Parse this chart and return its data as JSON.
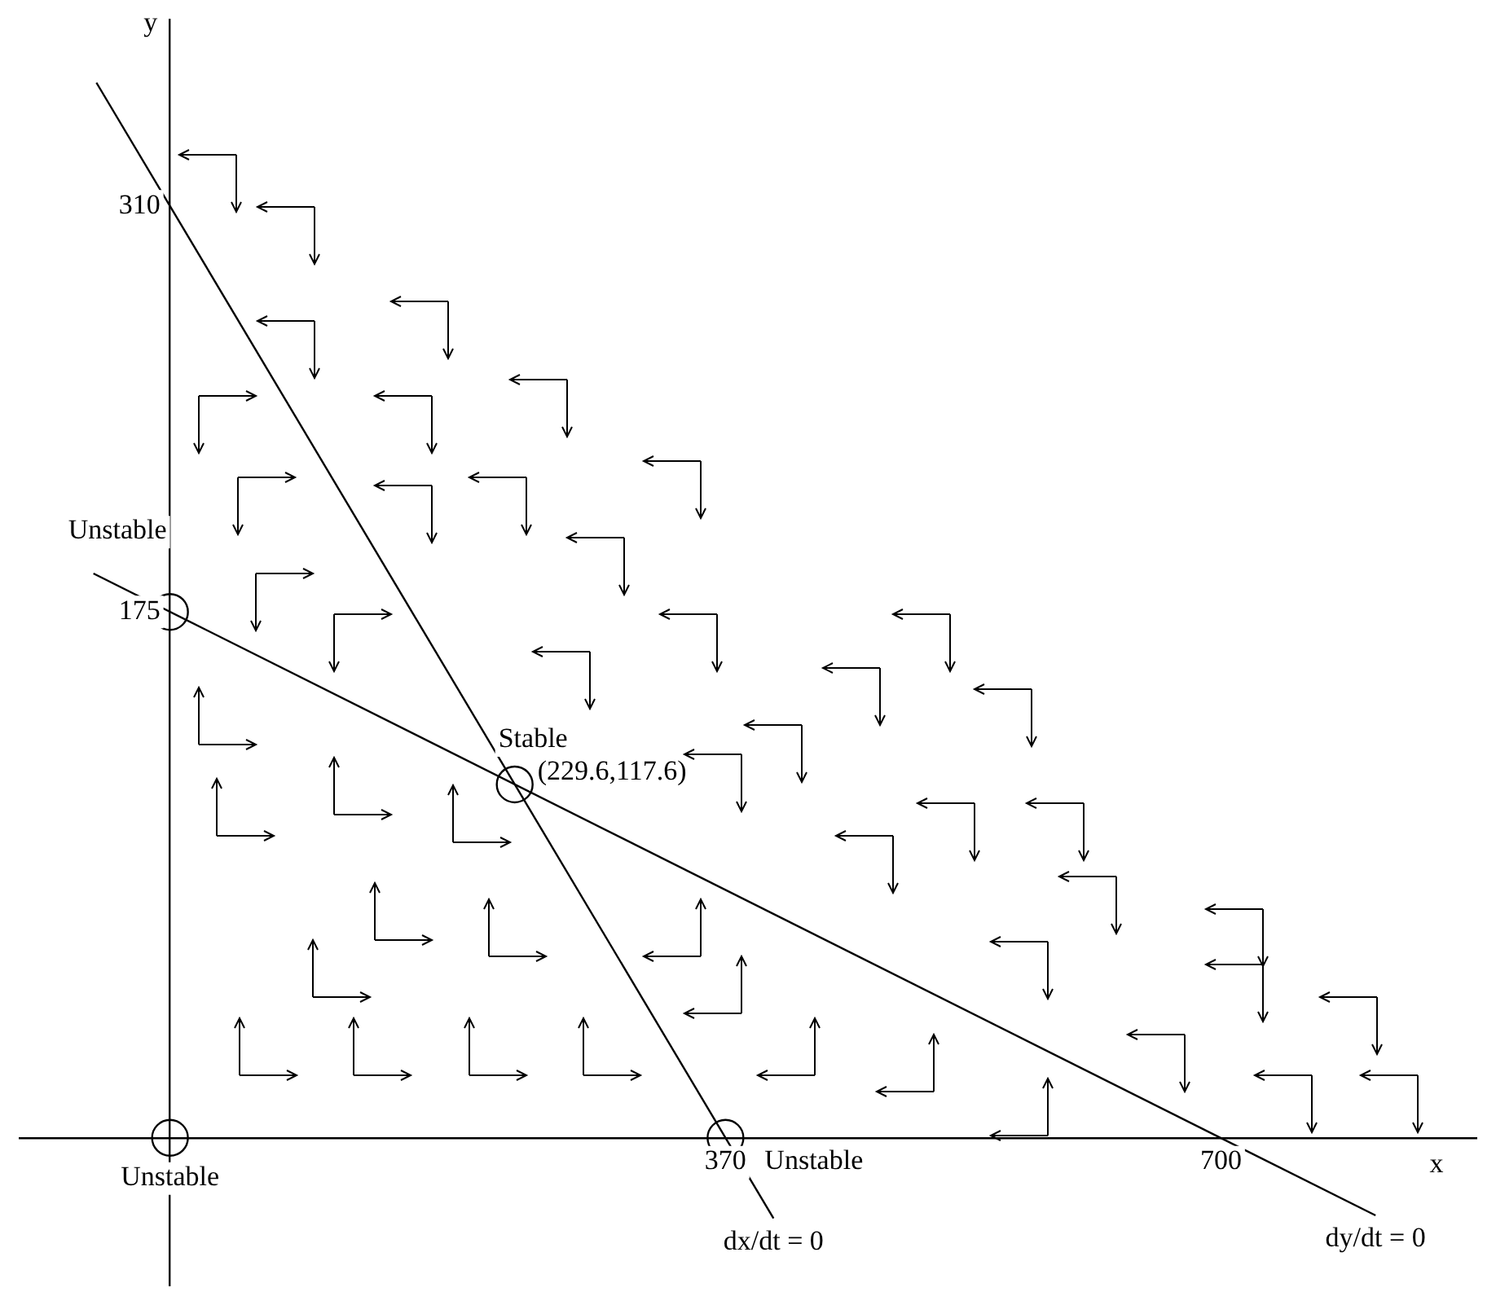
{
  "chart_data": {
    "type": "line",
    "xlabel": "x",
    "ylabel": "y",
    "xlim": [
      -100,
      870
    ],
    "ylim": [
      -49,
      372
    ],
    "xticks": [
      370,
      700
    ],
    "yticks": [
      175,
      310
    ],
    "grid": false,
    "legend": false,
    "line_style": "solid",
    "series": [
      {
        "type": "line",
        "color": "#000000",
        "x": [
          -49,
          402
        ],
        "values": [
          351.1,
          -26.8
        ],
        "marker": "none"
      },
      {
        "type": "line",
        "color": "#000000",
        "x": [
          -51,
          803
        ],
        "values": [
          187.8,
          -25.8
        ],
        "marker": "none"
      },
      {
        "type": "scatter",
        "color": "#000000",
        "x": [
          0,
          0,
          370,
          229.6
        ],
        "values": [
          0,
          175,
          0,
          117.6
        ],
        "marker": "circle"
      }
    ],
    "annotations": [
      {
        "text": "Unstable",
        "x": 0,
        "y": 0
      },
      {
        "text": "Unstable",
        "x": 0,
        "y": 175
      },
      {
        "text": "Unstable",
        "x": 370,
        "y": 0
      },
      {
        "text": "Stable",
        "x": 229.6,
        "y": 117.6
      },
      {
        "text": "(229.6,117.6)",
        "x": 229.6,
        "y": 117.6
      },
      {
        "text": "dx/dt = 0",
        "x": 402,
        "y": -26.8
      },
      {
        "text": "dy/dt = 0",
        "x": 803,
        "y": -25.8
      }
    ]
  }
}
